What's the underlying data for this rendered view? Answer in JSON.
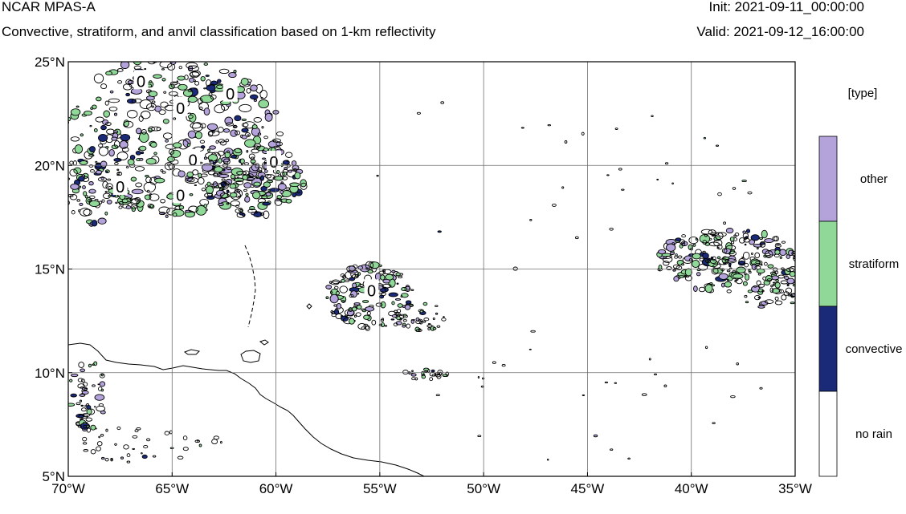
{
  "header": {
    "title": "NCAR MPAS-A",
    "subtitle": "Convective, stratiform, and anvil classification based on 1-km reflectivity",
    "init": "Init: 2021-09-11_00:00:00",
    "valid": "Valid: 2021-09-12_16:00:00"
  },
  "map": {
    "lon_range": [
      -70,
      -35
    ],
    "lat_range": [
      5,
      25
    ],
    "lon_ticks": [
      {
        "lon": -70,
        "label": "70°W"
      },
      {
        "lon": -65,
        "label": "65°W"
      },
      {
        "lon": -60,
        "label": "60°W"
      },
      {
        "lon": -55,
        "label": "55°W"
      },
      {
        "lon": -50,
        "label": "50°W"
      },
      {
        "lon": -45,
        "label": "45°W"
      },
      {
        "lon": -40,
        "label": "40°W"
      },
      {
        "lon": -35,
        "label": "35°W"
      }
    ],
    "lat_ticks": [
      {
        "lat": 25,
        "label": "25°N"
      },
      {
        "lat": 20,
        "label": "20°N"
      },
      {
        "lat": 15,
        "label": "15°N"
      },
      {
        "lat": 10,
        "label": "10°N"
      },
      {
        "lat": 5,
        "label": "5°N"
      }
    ],
    "gridlines": true,
    "contour_labels": [
      {
        "lon": -66.5,
        "lat": 24.1,
        "text": "0"
      },
      {
        "lon": -64.6,
        "lat": 22.8,
        "text": "0"
      },
      {
        "lon": -62.2,
        "lat": 23.5,
        "text": "0"
      },
      {
        "lon": -64.0,
        "lat": 20.3,
        "text": "0"
      },
      {
        "lon": -60.1,
        "lat": 20.2,
        "text": "0"
      },
      {
        "lon": -67.5,
        "lat": 19.0,
        "text": "0"
      },
      {
        "lon": -64.6,
        "lat": 18.6,
        "text": "0"
      },
      {
        "lon": -55.4,
        "lat": 14.0,
        "text": "0"
      }
    ]
  },
  "legend": {
    "title": "[type]",
    "items": [
      {
        "label": "other",
        "color": "#b3a3da"
      },
      {
        "label": "stratiform",
        "color": "#90d898"
      },
      {
        "label": "convective",
        "color": "#1a2a78"
      },
      {
        "label": "no rain",
        "color": "#ffffff"
      }
    ]
  }
}
